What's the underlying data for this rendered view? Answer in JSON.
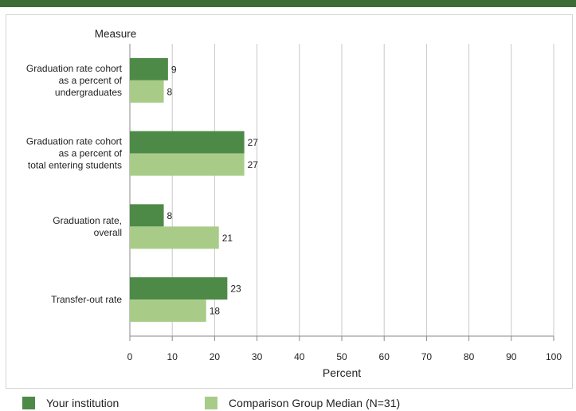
{
  "colors": {
    "your_institution": "#4e8a47",
    "comparison": "#a8cc88",
    "grid": "#c8c8c8",
    "axis": "#8a8a8a",
    "top_bar": "#3d6b35"
  },
  "chart_data": {
    "type": "bar",
    "orientation": "horizontal",
    "y_axis_title": "Measure",
    "xlabel": "Percent",
    "xlim": [
      0,
      100
    ],
    "x_ticks": [
      0,
      10,
      20,
      30,
      40,
      50,
      60,
      70,
      80,
      90,
      100
    ],
    "grid": true,
    "legend_position": "bottom",
    "categories": [
      [
        "Graduation rate cohort",
        "as a percent of",
        "undergraduates"
      ],
      [
        "Graduation rate cohort",
        "as a percent of",
        "total entering students"
      ],
      [
        "Graduation rate,",
        "overall"
      ],
      [
        "Transfer-out rate"
      ]
    ],
    "series": [
      {
        "name": "Your institution",
        "values": [
          9,
          27,
          8,
          23
        ]
      },
      {
        "name": "Comparison Group Median (N=31)",
        "values": [
          8,
          27,
          21,
          18
        ]
      }
    ]
  }
}
